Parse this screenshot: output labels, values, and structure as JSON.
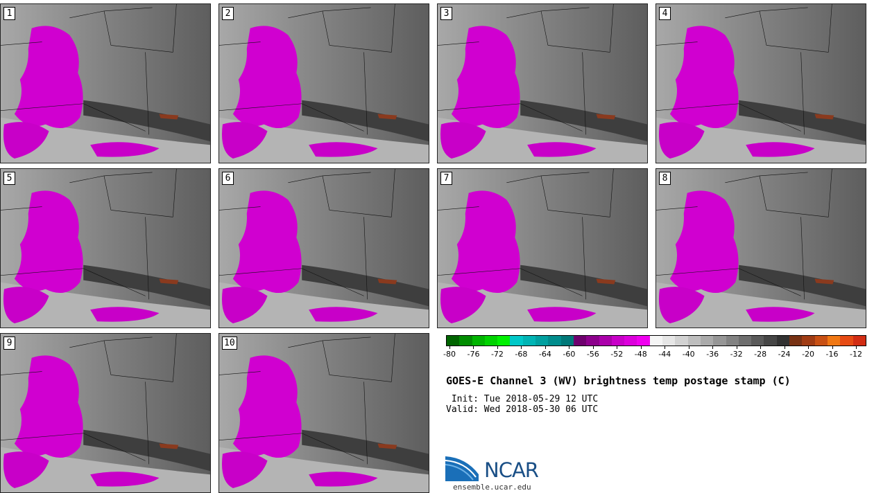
{
  "panels": [
    {
      "label": "1"
    },
    {
      "label": "2"
    },
    {
      "label": "3"
    },
    {
      "label": "4"
    },
    {
      "label": "5"
    },
    {
      "label": "6"
    },
    {
      "label": "7"
    },
    {
      "label": "8"
    },
    {
      "label": "9"
    },
    {
      "label": "10"
    }
  ],
  "colorbar": {
    "colors": [
      "#006400",
      "#008c00",
      "#00b400",
      "#00d200",
      "#00f000",
      "#00c8c8",
      "#00b4b4",
      "#00a0a0",
      "#008c8c",
      "#007878",
      "#6e006e",
      "#8c008c",
      "#aa00aa",
      "#c800c8",
      "#dc00dc",
      "#f000f0",
      "#f5f5f5",
      "#e6e6e6",
      "#d2d2d2",
      "#bebebe",
      "#aaaaaa",
      "#969696",
      "#828282",
      "#6e6e6e",
      "#5a5a5a",
      "#464646",
      "#323232",
      "#783214",
      "#a03c14",
      "#c85014",
      "#f07814",
      "#e64b14",
      "#d22d14"
    ],
    "tick_labels": [
      "-80",
      "-76",
      "-72",
      "-68",
      "-64",
      "-60",
      "-56",
      "-52",
      "-48",
      "-44",
      "-40",
      "-36",
      "-32",
      "-28",
      "-24",
      "-20",
      "-16",
      "-12"
    ]
  },
  "title": "GOES-E Channel 3 (WV) brightness temp postage stamp (C)",
  "init": " Init: Tue 2018-05-29 12 UTC",
  "valid": "Valid: Wed 2018-05-30 06 UTC",
  "logo": {
    "text": "NCAR",
    "url": "ensemble.ucar.edu"
  }
}
